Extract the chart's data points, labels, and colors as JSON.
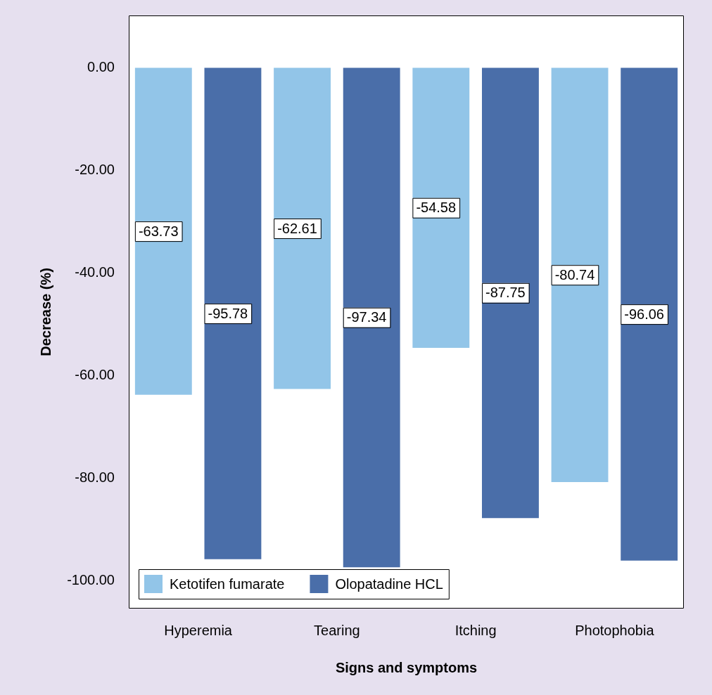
{
  "chart_data": {
    "type": "bar",
    "xlabel": "Signs and symptoms",
    "ylabel": "Decrease (%)",
    "categories": [
      "Hyperemia",
      "Tearing",
      "Itching",
      "Photophobia"
    ],
    "series": [
      {
        "name": "Ketotifen fumarate",
        "color": "#92c5e8",
        "values": [
          -63.73,
          -62.61,
          -54.58,
          -80.74
        ]
      },
      {
        "name": "Olopatadine HCL",
        "color": "#4a6ea9",
        "values": [
          -95.78,
          -97.34,
          -87.75,
          -96.06
        ]
      }
    ],
    "ylim": [
      -105.4,
      10.2
    ],
    "yticks": [
      {
        "value": 0,
        "label": "0.00"
      },
      {
        "value": -20,
        "label": "-20.00"
      },
      {
        "value": -40,
        "label": "-40.00"
      },
      {
        "value": -60,
        "label": "-60.00"
      },
      {
        "value": -80,
        "label": "-80.00"
      },
      {
        "value": -100,
        "label": "-100.00"
      }
    ],
    "data_labels": true,
    "grid": false,
    "legend": "bottom left"
  }
}
